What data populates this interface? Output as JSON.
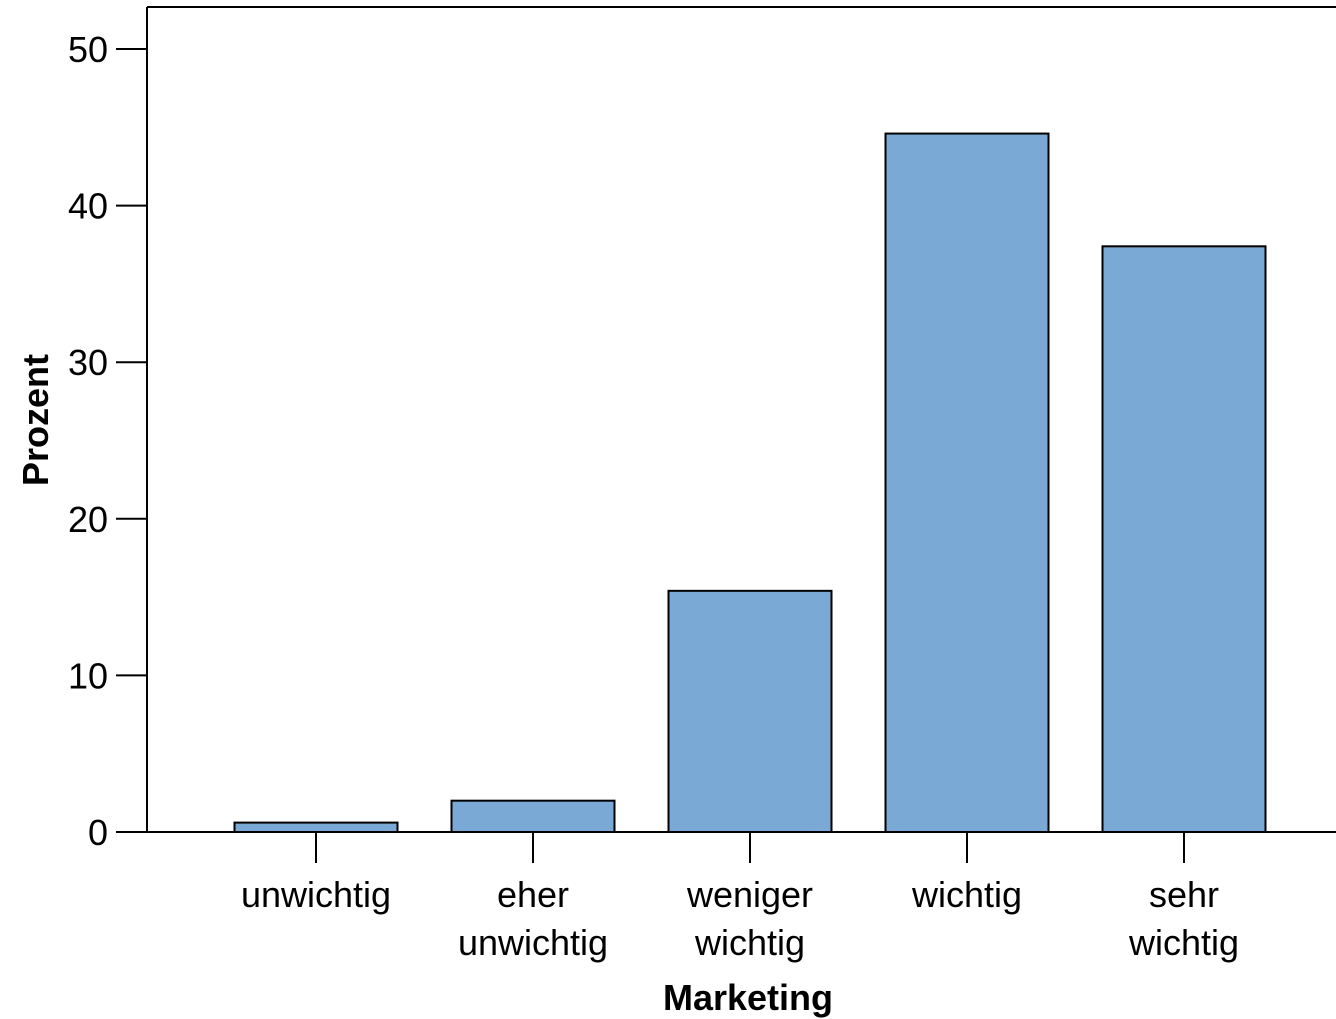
{
  "chart_data": {
    "type": "bar",
    "categories": [
      [
        "unwichtig"
      ],
      [
        "eher",
        "unwichtig"
      ],
      [
        "weniger",
        "wichtig"
      ],
      [
        "wichtig"
      ],
      [
        "sehr",
        "wichtig"
      ]
    ],
    "values": [
      0.6,
      2.0,
      15.4,
      44.6,
      37.4
    ],
    "xlabel": "Marketing",
    "ylabel": "Prozent",
    "ylim": [
      0,
      50
    ],
    "yticks": [
      0,
      10,
      20,
      30,
      40,
      50
    ],
    "grid": false,
    "bar_color": "#7BA9D6",
    "bar_edge_color": "#000000"
  }
}
